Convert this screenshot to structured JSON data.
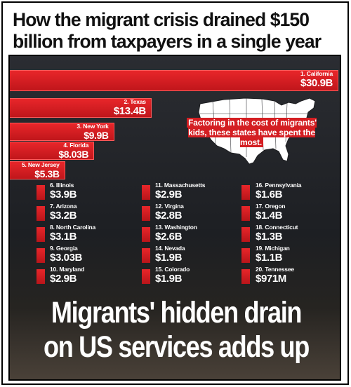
{
  "headline": {
    "line1": "How the migrant crisis drained $150",
    "line2": "billion from taxpayers in a single year"
  },
  "map_note": "Factoring in the cost of migrants' kids, these states have spent the most.",
  "bottom": {
    "line1": "Migrants' hidden drain",
    "line2": "on US services adds up"
  },
  "colors": {
    "bar": "#d41e22",
    "background": "#22242a",
    "text": "#ffffff"
  },
  "chart_data": {
    "type": "bar",
    "title": "How the migrant crisis drained $150 billion from taxpayers in a single year",
    "unit": "USD billions",
    "categories": [
      "1. California",
      "2. Texas",
      "3. New York",
      "4. Florida",
      "5. New Jersey",
      "6. Illinois",
      "7. Arizona",
      "8. North Carolina",
      "9. Georgia",
      "10. Maryland",
      "11. Massachusetts",
      "12. Virgina",
      "13. Washington",
      "14. Nevada",
      "15. Colorado",
      "16. Pennsylvania",
      "17. Oregon",
      "18. Connecticut",
      "19. Michigan",
      "20. Tennessee"
    ],
    "values": [
      30.9,
      13.4,
      9.9,
      8.03,
      5.3,
      3.9,
      3.2,
      3.1,
      3.03,
      2.9,
      2.9,
      2.8,
      2.6,
      1.9,
      1.9,
      1.6,
      1.4,
      1.3,
      1.1,
      0.971
    ],
    "value_labels": [
      "$30.9B",
      "$13.4B",
      "$9.9B",
      "$8.03B",
      "$5.3B",
      "$3.9B",
      "$3.2B",
      "$3.1B",
      "$3.03B",
      "$2.9B",
      "$2.9B",
      "$2.8B",
      "$2.6B",
      "$1.9B",
      "$1.9B",
      "$1.6B",
      "$1.4B",
      "$1.3B",
      "$1.1B",
      "$971M"
    ]
  }
}
